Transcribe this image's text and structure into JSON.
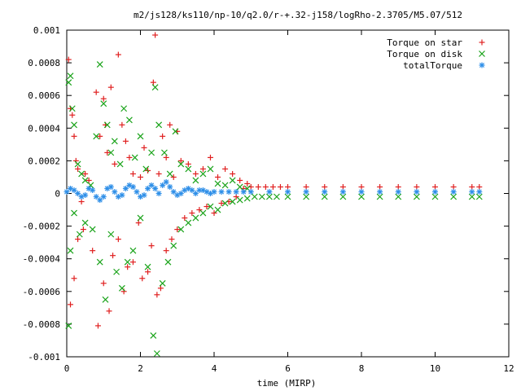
{
  "colors": {
    "star": "#e02020",
    "disk": "#1aa31a",
    "total": "#2f8fe8",
    "axis": "#000000"
  },
  "chart_data": {
    "type": "scatter",
    "title": "m2/js128/ks110/np-10/q2.0/r-+.32-j158/logRho-2.3705/M5.07/512",
    "xlabel": "time (MIRP)",
    "ylabel": "",
    "xlim": [
      0,
      12
    ],
    "ylim": [
      -0.001,
      0.001
    ],
    "xticks": [
      0,
      2,
      4,
      6,
      8,
      10,
      12
    ],
    "yticks": [
      -0.001,
      -0.0008,
      -0.0006,
      -0.0004,
      -0.0002,
      0,
      0.0002,
      0.0004,
      0.0006,
      0.0008,
      0.001
    ],
    "xtick_labels": [
      "0",
      "2",
      "4",
      "6",
      "8",
      "10",
      "12"
    ],
    "ytick_labels": [
      "-0.001",
      "-0.0008",
      "-0.0006",
      "-0.0004",
      "-0.0002",
      "0",
      "0.0002",
      "0.0004",
      "0.0006",
      "0.0008",
      "0.001"
    ],
    "grid": false,
    "legend_position": "top-right",
    "series": [
      {
        "name": "Torque on star",
        "marker": "plus",
        "color_key": "star",
        "x": [
          0.05,
          0.1,
          0.15,
          0.2,
          0.25,
          0.3,
          0.4,
          0.5,
          0.6,
          0.8,
          0.9,
          1.0,
          1.05,
          1.1,
          1.2,
          1.3,
          1.4,
          1.5,
          1.6,
          1.7,
          1.8,
          2.0,
          2.1,
          2.2,
          2.35,
          2.4,
          2.5,
          2.6,
          2.7,
          2.8,
          2.9,
          3.0,
          3.1,
          3.3,
          3.5,
          3.7,
          3.9,
          4.1,
          4.3,
          4.5,
          4.7,
          4.9,
          0.1,
          0.2,
          0.3,
          0.45,
          0.7,
          0.85,
          1.0,
          1.15,
          1.25,
          1.4,
          1.55,
          1.65,
          1.8,
          1.95,
          2.05,
          2.2,
          2.3,
          2.45,
          2.55,
          2.7,
          2.85,
          3.0,
          3.2,
          3.4,
          3.6,
          3.8,
          4.0,
          4.2,
          4.4,
          4.6,
          4.8,
          5.0,
          5.2,
          5.4,
          5.6,
          5.8,
          6.0,
          6.5,
          7.0,
          7.5,
          8.0,
          8.5,
          9.0,
          9.5,
          10.0,
          10.5,
          11.0,
          11.2
        ],
        "y": [
          0.00082,
          0.00052,
          0.00048,
          0.00035,
          0.0002,
          0.00015,
          -5e-05,
          0.00012,
          8e-05,
          0.00062,
          0.00035,
          0.00058,
          0.00042,
          0.00025,
          0.00065,
          0.00018,
          0.00085,
          0.00042,
          0.00032,
          0.00022,
          0.00012,
          0.0001,
          0.00028,
          0.00014,
          0.00068,
          0.00097,
          0.00012,
          0.00035,
          0.00022,
          0.00042,
          0.0001,
          0.00038,
          0.0002,
          0.00018,
          0.00012,
          0.00015,
          0.00022,
          0.0001,
          0.00015,
          0.00012,
          8e-05,
          6e-05,
          -0.00068,
          -0.00052,
          -0.00028,
          -0.00022,
          -0.00035,
          -0.00081,
          -0.00055,
          -0.00072,
          -0.00038,
          -0.00028,
          -0.0006,
          -0.00045,
          -0.00042,
          -0.00018,
          -0.00052,
          -0.00048,
          -0.00032,
          -0.00062,
          -0.00058,
          -0.00035,
          -0.00028,
          -0.00022,
          -0.00015,
          -0.00012,
          -0.0001,
          -8e-05,
          -0.00012,
          -6e-05,
          -5e-05,
          -2e-05,
          3e-05,
          4e-05,
          4e-05,
          4e-05,
          4e-05,
          4e-05,
          4e-05,
          4e-05,
          4e-05,
          4e-05,
          4e-05,
          4e-05,
          4e-05,
          4e-05,
          4e-05,
          4e-05,
          4e-05,
          4e-05
        ]
      },
      {
        "name": "Torque on disk",
        "marker": "cross",
        "color_key": "disk",
        "x": [
          0.05,
          0.1,
          0.15,
          0.2,
          0.3,
          0.4,
          0.5,
          0.65,
          0.8,
          0.9,
          1.0,
          1.1,
          1.2,
          1.3,
          1.45,
          1.55,
          1.7,
          1.85,
          2.0,
          2.15,
          2.3,
          2.4,
          2.5,
          2.65,
          2.8,
          2.95,
          3.1,
          3.3,
          3.5,
          3.7,
          3.9,
          4.1,
          4.3,
          4.5,
          4.7,
          4.9,
          0.05,
          0.1,
          0.2,
          0.35,
          0.5,
          0.7,
          0.9,
          1.05,
          1.2,
          1.35,
          1.5,
          1.65,
          1.8,
          2.0,
          2.2,
          2.35,
          2.45,
          2.6,
          2.75,
          2.9,
          3.1,
          3.3,
          3.5,
          3.7,
          3.9,
          4.1,
          4.3,
          4.5,
          4.7,
          4.9,
          5.1,
          5.3,
          5.5,
          5.7,
          6.0,
          6.5,
          7.0,
          7.5,
          8.0,
          8.5,
          9.0,
          9.5,
          10.0,
          10.5,
          11.0,
          11.2
        ],
        "y": [
          0.00068,
          0.00072,
          0.00052,
          0.00042,
          0.00018,
          0.00012,
          8e-05,
          5e-05,
          0.00035,
          0.00079,
          0.00055,
          0.00042,
          0.00025,
          0.00032,
          0.00018,
          0.00052,
          0.00045,
          0.00022,
          0.00035,
          0.00015,
          0.00025,
          0.00065,
          0.00042,
          0.00025,
          0.00012,
          0.00038,
          0.00018,
          0.00015,
          8e-05,
          0.00012,
          0.00015,
          6e-05,
          5e-05,
          8e-05,
          4e-05,
          3e-05,
          -0.00081,
          -0.00035,
          -0.00012,
          -0.00025,
          -0.00018,
          -0.00022,
          -0.00042,
          -0.00065,
          -0.00025,
          -0.00048,
          -0.00058,
          -0.00042,
          -0.00035,
          -0.00015,
          -0.00045,
          -0.00087,
          -0.00098,
          -0.00055,
          -0.00042,
          -0.00032,
          -0.00022,
          -0.00018,
          -0.00015,
          -0.00012,
          -8e-05,
          -0.0001,
          -6e-05,
          -5e-05,
          -4e-05,
          -3e-05,
          -2e-05,
          -2e-05,
          -2e-05,
          -2e-05,
          -2e-05,
          -2e-05,
          -2e-05,
          -2e-05,
          -2e-05,
          -2e-05,
          -2e-05,
          -2e-05,
          -2e-05,
          -2e-05,
          -2e-05,
          -2e-05
        ]
      },
      {
        "name": "totalTorque",
        "marker": "star",
        "color_key": "total",
        "x": [
          0.0,
          0.1,
          0.2,
          0.3,
          0.4,
          0.5,
          0.6,
          0.7,
          0.8,
          0.9,
          1.0,
          1.1,
          1.2,
          1.3,
          1.4,
          1.5,
          1.6,
          1.7,
          1.8,
          1.9,
          2.0,
          2.1,
          2.2,
          2.3,
          2.4,
          2.5,
          2.6,
          2.7,
          2.8,
          2.9,
          3.0,
          3.1,
          3.2,
          3.3,
          3.4,
          3.5,
          3.6,
          3.7,
          3.8,
          3.9,
          4.0,
          4.2,
          4.4,
          4.6,
          4.8,
          5.0,
          5.5,
          6.0,
          6.5,
          7.0,
          7.5,
          8.0,
          8.5,
          9.0,
          9.5,
          10.0,
          10.5,
          11.0,
          11.2
        ],
        "y": [
          1e-05,
          3e-05,
          2e-05,
          0.0,
          -2e-05,
          -1e-05,
          3e-05,
          2e-05,
          -2e-05,
          -4e-05,
          -2e-05,
          3e-05,
          4e-05,
          1e-05,
          -2e-05,
          -1e-05,
          3e-05,
          5e-05,
          4e-05,
          1e-05,
          -2e-05,
          -1e-05,
          3e-05,
          5e-05,
          3e-05,
          0.0,
          5e-05,
          7e-05,
          4e-05,
          1e-05,
          -1e-05,
          0.0,
          2e-05,
          3e-05,
          2e-05,
          0.0,
          2e-05,
          2e-05,
          1e-05,
          0.0,
          1e-05,
          1e-05,
          1e-05,
          1e-05,
          1e-05,
          1e-05,
          1e-05,
          1e-05,
          1e-05,
          1e-05,
          1e-05,
          1e-05,
          1e-05,
          1e-05,
          1e-05,
          1e-05,
          1e-05,
          1e-05,
          1e-05
        ]
      }
    ]
  }
}
